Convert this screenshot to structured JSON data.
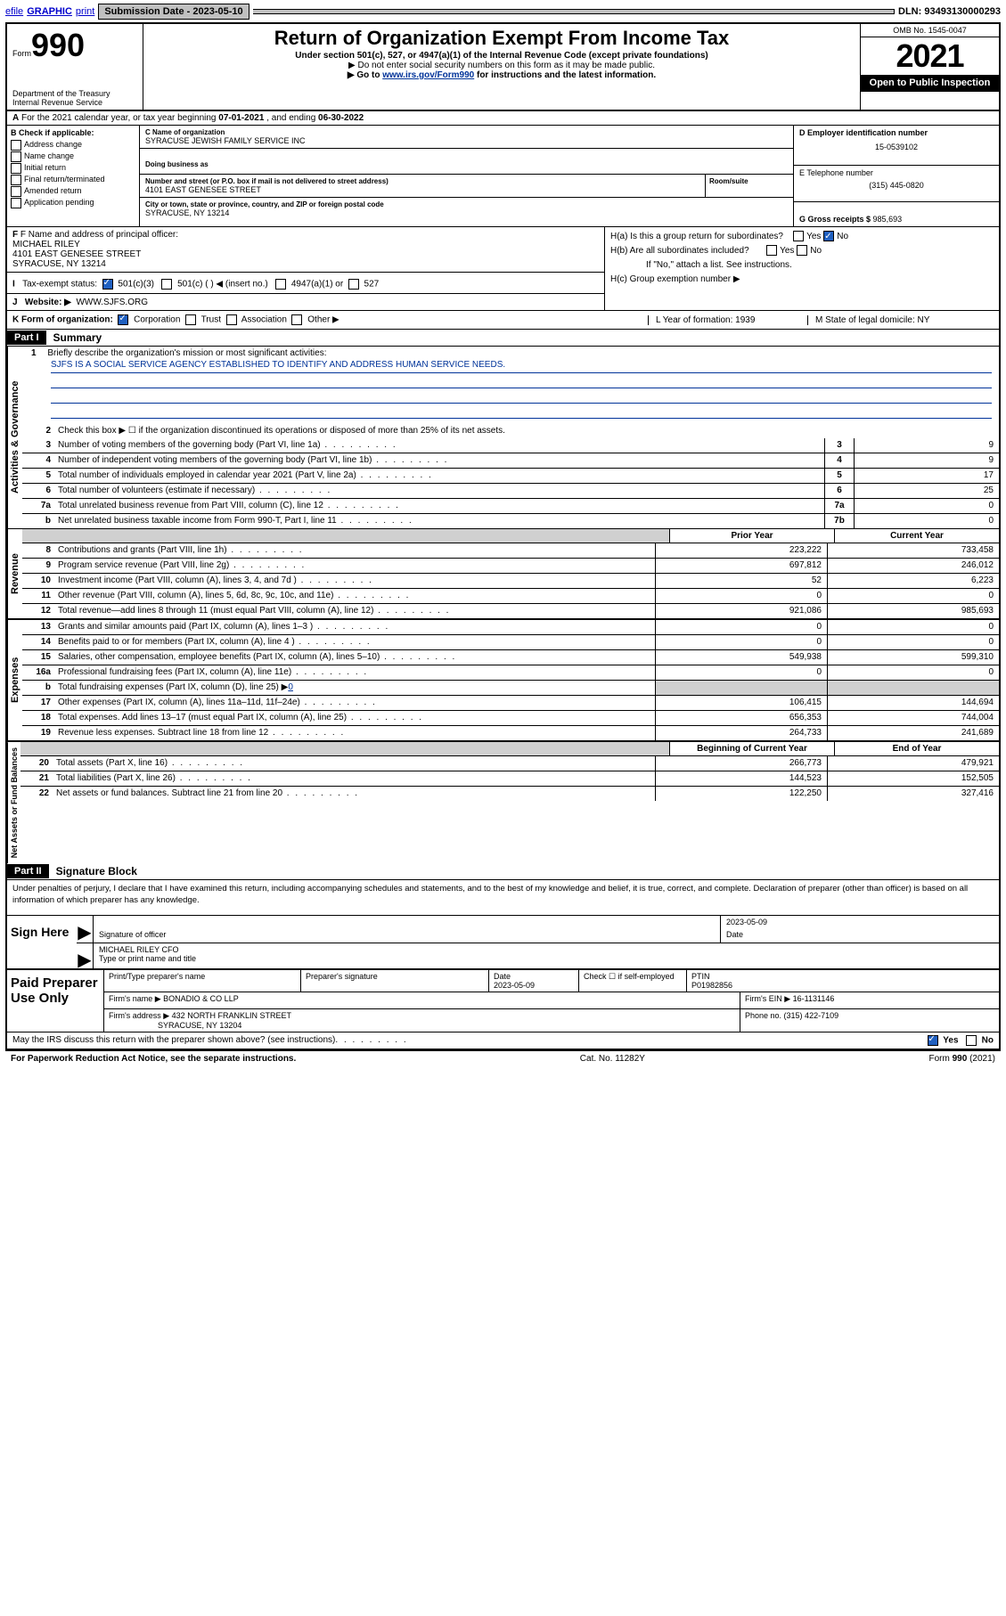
{
  "topbar": {
    "efile": "efile",
    "graphic": "GRAPHIC",
    "print": "print",
    "subdate_label": "Submission Date - 2023-05-10",
    "dln": "DLN: 93493130000293"
  },
  "header": {
    "form_word": "Form",
    "form_number": "990",
    "dept": "Department of the Treasury",
    "irs": "Internal Revenue Service",
    "title": "Return of Organization Exempt From Income Tax",
    "sub1": "Under section 501(c), 527, or 4947(a)(1) of the Internal Revenue Code (except private foundations)",
    "sub2": "▶ Do not enter social security numbers on this form as it may be made public.",
    "sub3_pre": "▶ Go to ",
    "sub3_link": "www.irs.gov/Form990",
    "sub3_post": " for instructions and the latest information.",
    "omb": "OMB No. 1545-0047",
    "year": "2021",
    "open": "Open to Public Inspection"
  },
  "row_a": {
    "text_pre": "For the 2021 calendar year, or tax year beginning ",
    "begin": "07-01-2021",
    "mid": " , and ending ",
    "end": "06-30-2022"
  },
  "col_b": {
    "head": "B Check if applicable:",
    "addr_change": "Address change",
    "name_change": "Name change",
    "initial": "Initial return",
    "final": "Final return/terminated",
    "amended": "Amended return",
    "app_pending": "Application pending"
  },
  "col_c": {
    "name_lbl": "C Name of organization",
    "name": "SYRACUSE JEWISH FAMILY SERVICE INC",
    "dba_lbl": "Doing business as",
    "dba": "",
    "addr_lbl": "Number and street (or P.O. box if mail is not delivered to street address)",
    "room_lbl": "Room/suite",
    "addr": "4101 EAST GENESEE STREET",
    "city_lbl": "City or town, state or province, country, and ZIP or foreign postal code",
    "city": "SYRACUSE, NY  13214"
  },
  "col_d": {
    "d_lbl": "D Employer identification number",
    "d_val": "15-0539102",
    "e_lbl": "E Telephone number",
    "e_val": "(315) 445-0820",
    "g_lbl": "G Gross receipts $ ",
    "g_val": "985,693"
  },
  "f": {
    "lbl": "F Name and address of principal officer:",
    "name": "MICHAEL RILEY",
    "addr1": "4101 EAST GENESEE STREET",
    "addr2": "SYRACUSE, NY  13214"
  },
  "h": {
    "ha": "H(a)  Is this a group return for subordinates?",
    "hb": "H(b)  Are all subordinates included?",
    "hb_note": "If \"No,\" attach a list. See instructions.",
    "hc": "H(c)  Group exemption number ▶",
    "yes": "Yes",
    "no": "No"
  },
  "i": {
    "lbl": "Tax-exempt status:",
    "c3": "501(c)(3)",
    "c": "501(c) (   ) ◀ (insert no.)",
    "a1": "4947(a)(1) or",
    "s527": "527"
  },
  "j": {
    "lbl": "Website: ▶",
    "val": "WWW.SJFS.ORG"
  },
  "k": {
    "lbl": "K Form of organization:",
    "corp": "Corporation",
    "trust": "Trust",
    "assoc": "Association",
    "other": "Other ▶"
  },
  "l": {
    "lbl": "L Year of formation: ",
    "val": "1939"
  },
  "m": {
    "lbl": "M State of legal domicile: ",
    "val": "NY"
  },
  "parts": {
    "part1": "Part I",
    "summary": "Summary",
    "part2": "Part II",
    "sig": "Signature Block"
  },
  "side_labels": {
    "act": "Activities & Governance",
    "rev": "Revenue",
    "exp": "Expenses",
    "net": "Net Assets or Fund Balances"
  },
  "line1": {
    "num": "1",
    "txt": "Briefly describe the organization's mission or most significant activities:",
    "mission": "SJFS IS A SOCIAL SERVICE AGENCY ESTABLISHED TO IDENTIFY AND ADDRESS HUMAN SERVICE NEEDS."
  },
  "line2": {
    "num": "2",
    "txt": "Check this box ▶ ☐  if the organization discontinued its operations or disposed of more than 25% of its net assets."
  },
  "gov_lines": [
    {
      "num": "3",
      "txt": "Number of voting members of the governing body (Part VI, line 1a)",
      "box": "3",
      "val": "9"
    },
    {
      "num": "4",
      "txt": "Number of independent voting members of the governing body (Part VI, line 1b)",
      "box": "4",
      "val": "9"
    },
    {
      "num": "5",
      "txt": "Total number of individuals employed in calendar year 2021 (Part V, line 2a)",
      "box": "5",
      "val": "17"
    },
    {
      "num": "6",
      "txt": "Total number of volunteers (estimate if necessary)",
      "box": "6",
      "val": "25"
    },
    {
      "num": "7a",
      "txt": "Total unrelated business revenue from Part VIII, column (C), line 12",
      "box": "7a",
      "val": "0"
    },
    {
      "num": "b",
      "txt": "Net unrelated business taxable income from Form 990-T, Part I, line 11",
      "box": "7b",
      "val": "0"
    }
  ],
  "two_col_headers": {
    "prior": "Prior Year",
    "current": "Current Year",
    "begin": "Beginning of Current Year",
    "end": "End of Year"
  },
  "rev_lines": [
    {
      "num": "8",
      "txt": "Contributions and grants (Part VIII, line 1h)",
      "prior": "223,222",
      "curr": "733,458"
    },
    {
      "num": "9",
      "txt": "Program service revenue (Part VIII, line 2g)",
      "prior": "697,812",
      "curr": "246,012"
    },
    {
      "num": "10",
      "txt": "Investment income (Part VIII, column (A), lines 3, 4, and 7d )",
      "prior": "52",
      "curr": "6,223"
    },
    {
      "num": "11",
      "txt": "Other revenue (Part VIII, column (A), lines 5, 6d, 8c, 9c, 10c, and 11e)",
      "prior": "0",
      "curr": "0"
    },
    {
      "num": "12",
      "txt": "Total revenue—add lines 8 through 11 (must equal Part VIII, column (A), line 12)",
      "prior": "921,086",
      "curr": "985,693"
    }
  ],
  "exp_lines": [
    {
      "num": "13",
      "txt": "Grants and similar amounts paid (Part IX, column (A), lines 1–3 )",
      "prior": "0",
      "curr": "0"
    },
    {
      "num": "14",
      "txt": "Benefits paid to or for members (Part IX, column (A), line 4 )",
      "prior": "0",
      "curr": "0"
    },
    {
      "num": "15",
      "txt": "Salaries, other compensation, employee benefits (Part IX, column (A), lines 5–10)",
      "prior": "549,938",
      "curr": "599,310"
    },
    {
      "num": "16a",
      "txt": "Professional fundraising fees (Part IX, column (A), line 11e)",
      "prior": "0",
      "curr": "0"
    }
  ],
  "line16b": {
    "num": "b",
    "txt": "Total fundraising expenses (Part IX, column (D), line 25) ▶",
    "val": "0"
  },
  "exp_lines2": [
    {
      "num": "17",
      "txt": "Other expenses (Part IX, column (A), lines 11a–11d, 11f–24e)",
      "prior": "106,415",
      "curr": "144,694"
    },
    {
      "num": "18",
      "txt": "Total expenses. Add lines 13–17 (must equal Part IX, column (A), line 25)",
      "prior": "656,353",
      "curr": "744,004"
    },
    {
      "num": "19",
      "txt": "Revenue less expenses. Subtract line 18 from line 12",
      "prior": "264,733",
      "curr": "241,689"
    }
  ],
  "net_lines": [
    {
      "num": "20",
      "txt": "Total assets (Part X, line 16)",
      "prior": "266,773",
      "curr": "479,921"
    },
    {
      "num": "21",
      "txt": "Total liabilities (Part X, line 26)",
      "prior": "144,523",
      "curr": "152,505"
    },
    {
      "num": "22",
      "txt": "Net assets or fund balances. Subtract line 21 from line 20",
      "prior": "122,250",
      "curr": "327,416"
    }
  ],
  "sig": {
    "declare": "Under penalties of perjury, I declare that I have examined this return, including accompanying schedules and statements, and to the best of my knowledge and belief, it is true, correct, and complete. Declaration of preparer (other than officer) is based on all information of which preparer has any knowledge.",
    "sign_here": "Sign Here",
    "sig_officer_lbl": "Signature of officer",
    "date_lbl": "Date",
    "date_val": "2023-05-09",
    "name_title": "MICHAEL RILEY CFO",
    "name_title_lbl": "Type or print name and title"
  },
  "paid": {
    "title": "Paid Preparer Use Only",
    "print_name_lbl": "Print/Type preparer's name",
    "prep_sig_lbl": "Preparer's signature",
    "date_lbl": "Date",
    "date_val": "2023-05-09",
    "check_lbl": "Check ☐ if self-employed",
    "ptin_lbl": "PTIN",
    "ptin_val": "P01982856",
    "firm_name_lbl": "Firm's name    ▶",
    "firm_name": "BONADIO & CO LLP",
    "firm_ein_lbl": "Firm's EIN ▶",
    "firm_ein": "16-1131146",
    "firm_addr_lbl": "Firm's address ▶",
    "firm_addr1": "432 NORTH FRANKLIN STREET",
    "firm_addr2": "SYRACUSE, NY  13204",
    "phone_lbl": "Phone no. ",
    "phone": "(315) 422-7109"
  },
  "foot": {
    "discuss": "May the IRS discuss this return with the preparer shown above? (see instructions)",
    "yes": "Yes",
    "no": "No",
    "paperwork": "For Paperwork Reduction Act Notice, see the separate instructions.",
    "cat": "Cat. No. 11282Y",
    "form": "Form 990 (2021)"
  },
  "colors": {
    "link": "#003399",
    "check_blue": "#2060c0",
    "shade": "#d0d0d0"
  }
}
